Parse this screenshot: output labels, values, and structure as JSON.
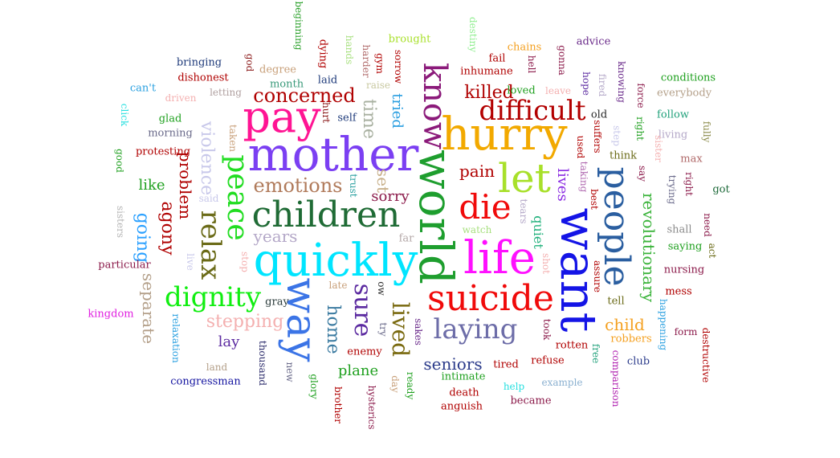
{
  "words": [
    {
      "text": "mother",
      "color": "#7b3ff2"
    },
    {
      "text": "quickly",
      "color": "#00e5ff"
    },
    {
      "text": "world",
      "color": "#1e9e2e"
    },
    {
      "text": "want",
      "color": "#1414e6"
    },
    {
      "text": "hurry",
      "color": "#f2a900"
    },
    {
      "text": "life",
      "color": "#ff10ff"
    },
    {
      "text": "pay",
      "color": "#ff1493"
    },
    {
      "text": "know",
      "color": "#8b1a7a"
    },
    {
      "text": "people",
      "color": "#2a5ea0"
    },
    {
      "text": "children",
      "color": "#1f6b35"
    },
    {
      "text": "way",
      "color": "#3b74e6"
    },
    {
      "text": "suicide",
      "color": "#f00a0a"
    },
    {
      "text": "let",
      "color": "#a8e02a"
    },
    {
      "text": "die",
      "color": "#f00a0a"
    },
    {
      "text": "peace",
      "color": "#22dd22"
    },
    {
      "text": "difficult",
      "color": "#b30000"
    },
    {
      "text": "laying",
      "color": "#6d6da8"
    },
    {
      "text": "dignity",
      "color": "#11ee11"
    },
    {
      "text": "relax",
      "color": "#6b6b18"
    },
    {
      "text": "sure",
      "color": "#5b2aa0"
    },
    {
      "text": "lived",
      "color": "#7a6a10"
    },
    {
      "text": "emotions",
      "color": "#b07a5a"
    },
    {
      "text": "concerned",
      "color": "#b00000"
    },
    {
      "text": "violence",
      "color": "#c8c8ea"
    },
    {
      "text": "time",
      "color": "#a8b0a0"
    },
    {
      "text": "revolutionary",
      "color": "#3cb43c"
    },
    {
      "text": "problem",
      "color": "#b00000"
    },
    {
      "text": "agony",
      "color": "#b00000"
    },
    {
      "text": "killed",
      "color": "#b00000"
    },
    {
      "text": "home",
      "color": "#3a7aa0"
    },
    {
      "text": "separate",
      "color": "#b4a08a"
    },
    {
      "text": "going",
      "color": "#2aa0ff"
    },
    {
      "text": "stepping",
      "color": "#f4b0b0"
    },
    {
      "text": "years",
      "color": "#b4a8c8"
    },
    {
      "text": "tried",
      "color": "#2a9ee0"
    },
    {
      "text": "pain",
      "color": "#b00000"
    },
    {
      "text": "lives",
      "color": "#8a2be2"
    },
    {
      "text": "quiet",
      "color": "#1fb07a"
    },
    {
      "text": "sorry",
      "color": "#8b1a4a"
    },
    {
      "text": "set",
      "color": "#c8b08a"
    },
    {
      "text": "seniors",
      "color": "#2a3a8a"
    },
    {
      "text": "plane",
      "color": "#1fa01f"
    },
    {
      "text": "child",
      "color": "#f4a020"
    },
    {
      "text": "like",
      "color": "#1ea01e"
    },
    {
      "text": "lay",
      "color": "#5b2aa0"
    },
    {
      "text": "beginning",
      "color": "#2aa02a"
    },
    {
      "text": "destiny",
      "color": "#90ee90"
    },
    {
      "text": "brought",
      "color": "#a8e02a"
    },
    {
      "text": "chains",
      "color": "#f4a020"
    },
    {
      "text": "advice",
      "color": "#6a2a8a"
    },
    {
      "text": "bringing",
      "color": "#1e3a7a"
    },
    {
      "text": "dishonest",
      "color": "#b00000"
    },
    {
      "text": "god",
      "color": "#8b1a1a"
    },
    {
      "text": "degree",
      "color": "#c8a07a"
    },
    {
      "text": "month",
      "color": "#3a9a7a"
    },
    {
      "text": "dying",
      "color": "#b00000"
    },
    {
      "text": "hands",
      "color": "#a8e080"
    },
    {
      "text": "harder",
      "color": "#b06a6a"
    },
    {
      "text": "gym",
      "color": "#b00000"
    },
    {
      "text": "sorrow",
      "color": "#b00000"
    },
    {
      "text": "fail",
      "color": "#b00000"
    },
    {
      "text": "hell",
      "color": "#8b1a4a"
    },
    {
      "text": "gonna",
      "color": "#8b1a4a"
    },
    {
      "text": "inhumane",
      "color": "#b00000"
    },
    {
      "text": "conditions",
      "color": "#1ea01e"
    },
    {
      "text": "can't",
      "color": "#2aa0e0"
    },
    {
      "text": "letting",
      "color": "#b0a0a0"
    },
    {
      "text": "laid",
      "color": "#1e3a7a"
    },
    {
      "text": "raise",
      "color": "#c8c8a0"
    },
    {
      "text": "loved",
      "color": "#1fa01f"
    },
    {
      "text": "leave",
      "color": "#f4b0b0"
    },
    {
      "text": "hope",
      "color": "#5b2aa0"
    },
    {
      "text": "fired",
      "color": "#b4a8c8"
    },
    {
      "text": "knowing",
      "color": "#6a2a8a"
    },
    {
      "text": "force",
      "color": "#8b1a4a"
    },
    {
      "text": "everybody",
      "color": "#b4a08a"
    },
    {
      "text": "driven",
      "color": "#f4b0b0"
    },
    {
      "text": "click",
      "color": "#2ae0e0"
    },
    {
      "text": "glad",
      "color": "#1ea01e"
    },
    {
      "text": "morning",
      "color": "#6a6a8a"
    },
    {
      "text": "hurt",
      "color": "#8b1a1a"
    },
    {
      "text": "self",
      "color": "#1e3a7a"
    },
    {
      "text": "old",
      "color": "#2a2a2a"
    },
    {
      "text": "follow",
      "color": "#1fa07a"
    },
    {
      "text": "suffers",
      "color": "#b00000"
    },
    {
      "text": "step",
      "color": "#c8c8ea"
    },
    {
      "text": "right",
      "color": "#1fa01f"
    },
    {
      "text": "living",
      "color": "#b4a8c8"
    },
    {
      "text": "fully",
      "color": "#8b8b4a"
    },
    {
      "text": "good",
      "color": "#1fa01f"
    },
    {
      "text": "protesting",
      "color": "#b00000"
    },
    {
      "text": "taken",
      "color": "#c8a07a"
    },
    {
      "text": "used",
      "color": "#b00000"
    },
    {
      "text": "think",
      "color": "#6b6b18"
    },
    {
      "text": "sister",
      "color": "#f4b0b0"
    },
    {
      "text": "max",
      "color": "#b06a6a"
    },
    {
      "text": "taking",
      "color": "#b06ab0"
    },
    {
      "text": "say",
      "color": "#8b1a4a"
    },
    {
      "text": "right",
      "color": "#8b1a4a"
    },
    {
      "text": "trying",
      "color": "#6a6a8a"
    },
    {
      "text": "got",
      "color": "#1e6a3a"
    },
    {
      "text": "said",
      "color": "#c8c8ea"
    },
    {
      "text": "trust",
      "color": "#2aa0a0"
    },
    {
      "text": "best",
      "color": "#b00000"
    },
    {
      "text": "tears",
      "color": "#b4a8c8"
    },
    {
      "text": "shall",
      "color": "#8b8b8b"
    },
    {
      "text": "need",
      "color": "#8b1a4a"
    },
    {
      "text": "sisters",
      "color": "#b4b4b4"
    },
    {
      "text": "particular",
      "color": "#8b1a4a"
    },
    {
      "text": "live",
      "color": "#c8c8ea"
    },
    {
      "text": "stop",
      "color": "#f4b0b0"
    },
    {
      "text": "far",
      "color": "#b4a8a8"
    },
    {
      "text": "watch",
      "color": "#a8e080"
    },
    {
      "text": "shot",
      "color": "#f4b0b0"
    },
    {
      "text": "saying",
      "color": "#1fa01f"
    },
    {
      "text": "act",
      "color": "#6b6b18"
    },
    {
      "text": "nursing",
      "color": "#8b1a4a"
    },
    {
      "text": "assure",
      "color": "#b00000"
    },
    {
      "text": "mess",
      "color": "#b00000"
    },
    {
      "text": "late",
      "color": "#c8a07a"
    },
    {
      "text": "ow",
      "color": "#2a2a2a"
    },
    {
      "text": "gray",
      "color": "#2a3a3a"
    },
    {
      "text": "tell",
      "color": "#6b6b18"
    },
    {
      "text": "kingdom",
      "color": "#e020e0"
    },
    {
      "text": "try",
      "color": "#6a6a8a"
    },
    {
      "text": "sakes",
      "color": "#6a2a8a"
    },
    {
      "text": "took",
      "color": "#8b1a4a"
    },
    {
      "text": "happening",
      "color": "#2aa0e0"
    },
    {
      "text": "form",
      "color": "#8b1a4a"
    },
    {
      "text": "destructive",
      "color": "#b00000"
    },
    {
      "text": "relaxation",
      "color": "#2aa0e0"
    },
    {
      "text": "thousand",
      "color": "#2a2a6a"
    },
    {
      "text": "enemy",
      "color": "#b00000"
    },
    {
      "text": "rotten",
      "color": "#b00000"
    },
    {
      "text": "free",
      "color": "#1fa07a"
    },
    {
      "text": "robbers",
      "color": "#f4a020"
    },
    {
      "text": "land",
      "color": "#b4a08a"
    },
    {
      "text": "new",
      "color": "#6a6a8a"
    },
    {
      "text": "glory",
      "color": "#1fa01f"
    },
    {
      "text": "day",
      "color": "#c8a07a"
    },
    {
      "text": "ready",
      "color": "#1fa01f"
    },
    {
      "text": "refuse",
      "color": "#b00000"
    },
    {
      "text": "club",
      "color": "#2a3a8a"
    },
    {
      "text": "comparison",
      "color": "#b020b0"
    },
    {
      "text": "intimate",
      "color": "#1fa01f"
    },
    {
      "text": "tired",
      "color": "#b00000"
    },
    {
      "text": "example",
      "color": "#8ab0d0"
    },
    {
      "text": "congressman",
      "color": "#1414a0"
    },
    {
      "text": "brother",
      "color": "#b00000"
    },
    {
      "text": "hysterics",
      "color": "#8b1a4a"
    },
    {
      "text": "death",
      "color": "#b00000"
    },
    {
      "text": "help",
      "color": "#2ae0e0"
    },
    {
      "text": "became",
      "color": "#8b1a4a"
    },
    {
      "text": "anguish",
      "color": "#b00000"
    }
  ]
}
